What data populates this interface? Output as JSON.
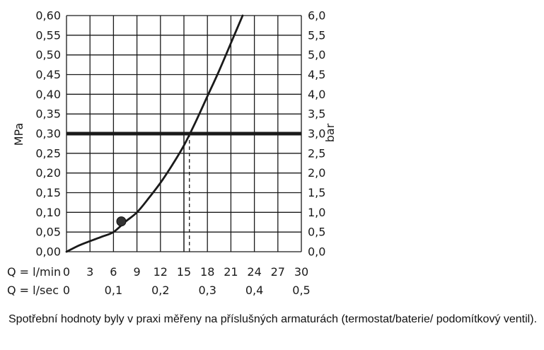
{
  "chart_data": {
    "type": "line",
    "title": "",
    "y_left": {
      "label": "MPa",
      "range": [
        0,
        0.6
      ],
      "ticks": [
        "0,00",
        "0,05",
        "0,10",
        "0,15",
        "0,20",
        "0,25",
        "0,30",
        "0,35",
        "0,40",
        "0,45",
        "0,50",
        "0,55",
        "0,60"
      ]
    },
    "y_right": {
      "label": "bar",
      "range": [
        0,
        6
      ],
      "ticks": [
        "0,0",
        "0,5",
        "1,0",
        "1,5",
        "2,0",
        "2,5",
        "3,0",
        "3,5",
        "4,0",
        "4,5",
        "5,0",
        "5,5",
        "6,0"
      ]
    },
    "x_lmin": {
      "label": "Q = l/min",
      "range": [
        0,
        30
      ],
      "ticks": [
        "0",
        "3",
        "6",
        "9",
        "12",
        "15",
        "18",
        "21",
        "24",
        "27",
        "30"
      ]
    },
    "x_lsec": {
      "label": "Q = l/sec",
      "tick_values": [
        0,
        6,
        12,
        18,
        24,
        30
      ],
      "ticks": [
        "0",
        "0,1",
        "0,2",
        "0,3",
        "0,4",
        "0,5"
      ]
    },
    "grid": true,
    "series": [
      {
        "x": [
          0,
          1.5,
          3,
          4.5,
          6,
          7.5,
          9,
          10.5,
          12,
          13.5,
          15,
          16.5,
          18,
          19.5,
          21,
          22.5
        ],
        "y": [
          0,
          0.015,
          0.027,
          0.038,
          0.05,
          0.076,
          0.1,
          0.136,
          0.175,
          0.22,
          0.27,
          0.33,
          0.395,
          0.46,
          0.53,
          0.6
        ]
      }
    ],
    "marker": {
      "x": 7,
      "y": 0.077
    },
    "reference_line": {
      "y": 0.3
    },
    "reference_x_solid": 15,
    "reference_x_dashed": 15.7
  },
  "footnote": "Spotřební hodnoty byly v praxi měřeny na příslušných armaturách (termostat/baterie/ podomítkový ventil)."
}
